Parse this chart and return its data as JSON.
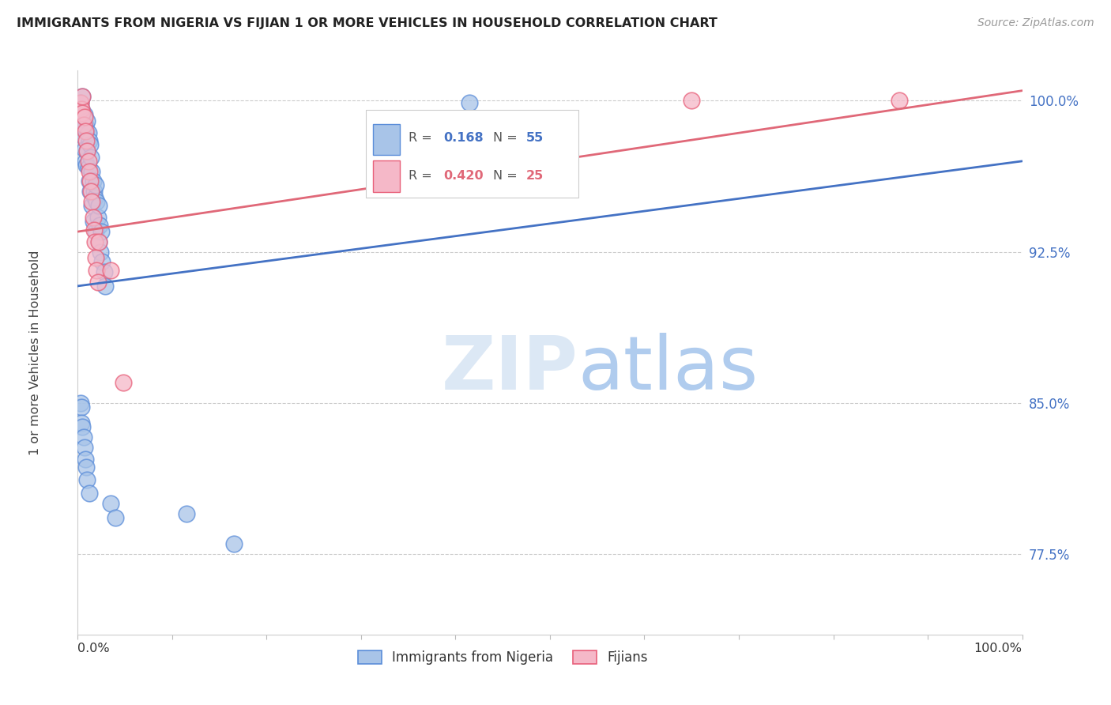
{
  "title": "IMMIGRANTS FROM NIGERIA VS FIJIAN 1 OR MORE VEHICLES IN HOUSEHOLD CORRELATION CHART",
  "source": "Source: ZipAtlas.com",
  "ylabel": "1 or more Vehicles in Household",
  "legend_label_blue": "Immigrants from Nigeria",
  "legend_label_pink": "Fijians",
  "blue_scatter_color": "#a8c4e8",
  "blue_edge_color": "#5b8dd9",
  "pink_scatter_color": "#f5b8c8",
  "pink_edge_color": "#e8607a",
  "line_blue_color": "#4472c4",
  "line_pink_color": "#e06878",
  "grid_color": "#cccccc",
  "ytick_color": "#4472c4",
  "title_color": "#222222",
  "source_color": "#999999",
  "watermark_zip_color": "#dce8f5",
  "watermark_atlas_color": "#b0ccee",
  "xmin": 0.0,
  "xmax": 1.0,
  "ymin": 0.735,
  "ymax": 1.015,
  "yticks": [
    0.775,
    0.85,
    0.925,
    1.0
  ],
  "ytick_labels": [
    "77.5%",
    "85.0%",
    "92.5%",
    "100.0%"
  ],
  "blue_line_x0": 0.0,
  "blue_line_y0": 0.908,
  "blue_line_x1": 1.0,
  "blue_line_y1": 0.97,
  "pink_line_x0": 0.0,
  "pink_line_y0": 0.935,
  "pink_line_x1": 1.0,
  "pink_line_y1": 1.005,
  "blue_x": [
    0.003,
    0.004,
    0.005,
    0.005,
    0.005,
    0.006,
    0.006,
    0.007,
    0.007,
    0.008,
    0.008,
    0.009,
    0.009,
    0.01,
    0.01,
    0.011,
    0.011,
    0.012,
    0.012,
    0.013,
    0.013,
    0.014,
    0.015,
    0.015,
    0.016,
    0.016,
    0.017,
    0.018,
    0.019,
    0.019,
    0.02,
    0.021,
    0.022,
    0.022,
    0.023,
    0.024,
    0.025,
    0.026,
    0.028,
    0.029,
    0.003,
    0.004,
    0.004,
    0.005,
    0.006,
    0.007,
    0.008,
    0.009,
    0.01,
    0.012,
    0.035,
    0.04,
    0.115,
    0.165,
    0.415
  ],
  "blue_y": [
    0.999,
    0.996,
    1.002,
    0.994,
    0.988,
    0.987,
    0.982,
    0.993,
    0.976,
    0.988,
    0.97,
    0.985,
    0.968,
    0.99,
    0.975,
    0.984,
    0.967,
    0.98,
    0.96,
    0.978,
    0.955,
    0.972,
    0.965,
    0.948,
    0.96,
    0.94,
    0.955,
    0.952,
    0.958,
    0.935,
    0.95,
    0.942,
    0.948,
    0.93,
    0.938,
    0.925,
    0.935,
    0.92,
    0.915,
    0.908,
    0.85,
    0.848,
    0.84,
    0.838,
    0.833,
    0.828,
    0.822,
    0.818,
    0.812,
    0.805,
    0.8,
    0.793,
    0.795,
    0.78,
    0.999
  ],
  "pink_x": [
    0.003,
    0.004,
    0.005,
    0.005,
    0.006,
    0.007,
    0.008,
    0.009,
    0.01,
    0.011,
    0.012,
    0.013,
    0.014,
    0.015,
    0.016,
    0.017,
    0.018,
    0.019,
    0.02,
    0.021,
    0.022,
    0.035,
    0.048,
    0.65,
    0.87
  ],
  "pink_y": [
    0.999,
    0.996,
    1.002,
    0.994,
    0.988,
    0.992,
    0.985,
    0.98,
    0.975,
    0.97,
    0.965,
    0.96,
    0.955,
    0.95,
    0.942,
    0.936,
    0.93,
    0.922,
    0.916,
    0.91,
    0.93,
    0.916,
    0.86,
    1.0,
    1.0
  ]
}
